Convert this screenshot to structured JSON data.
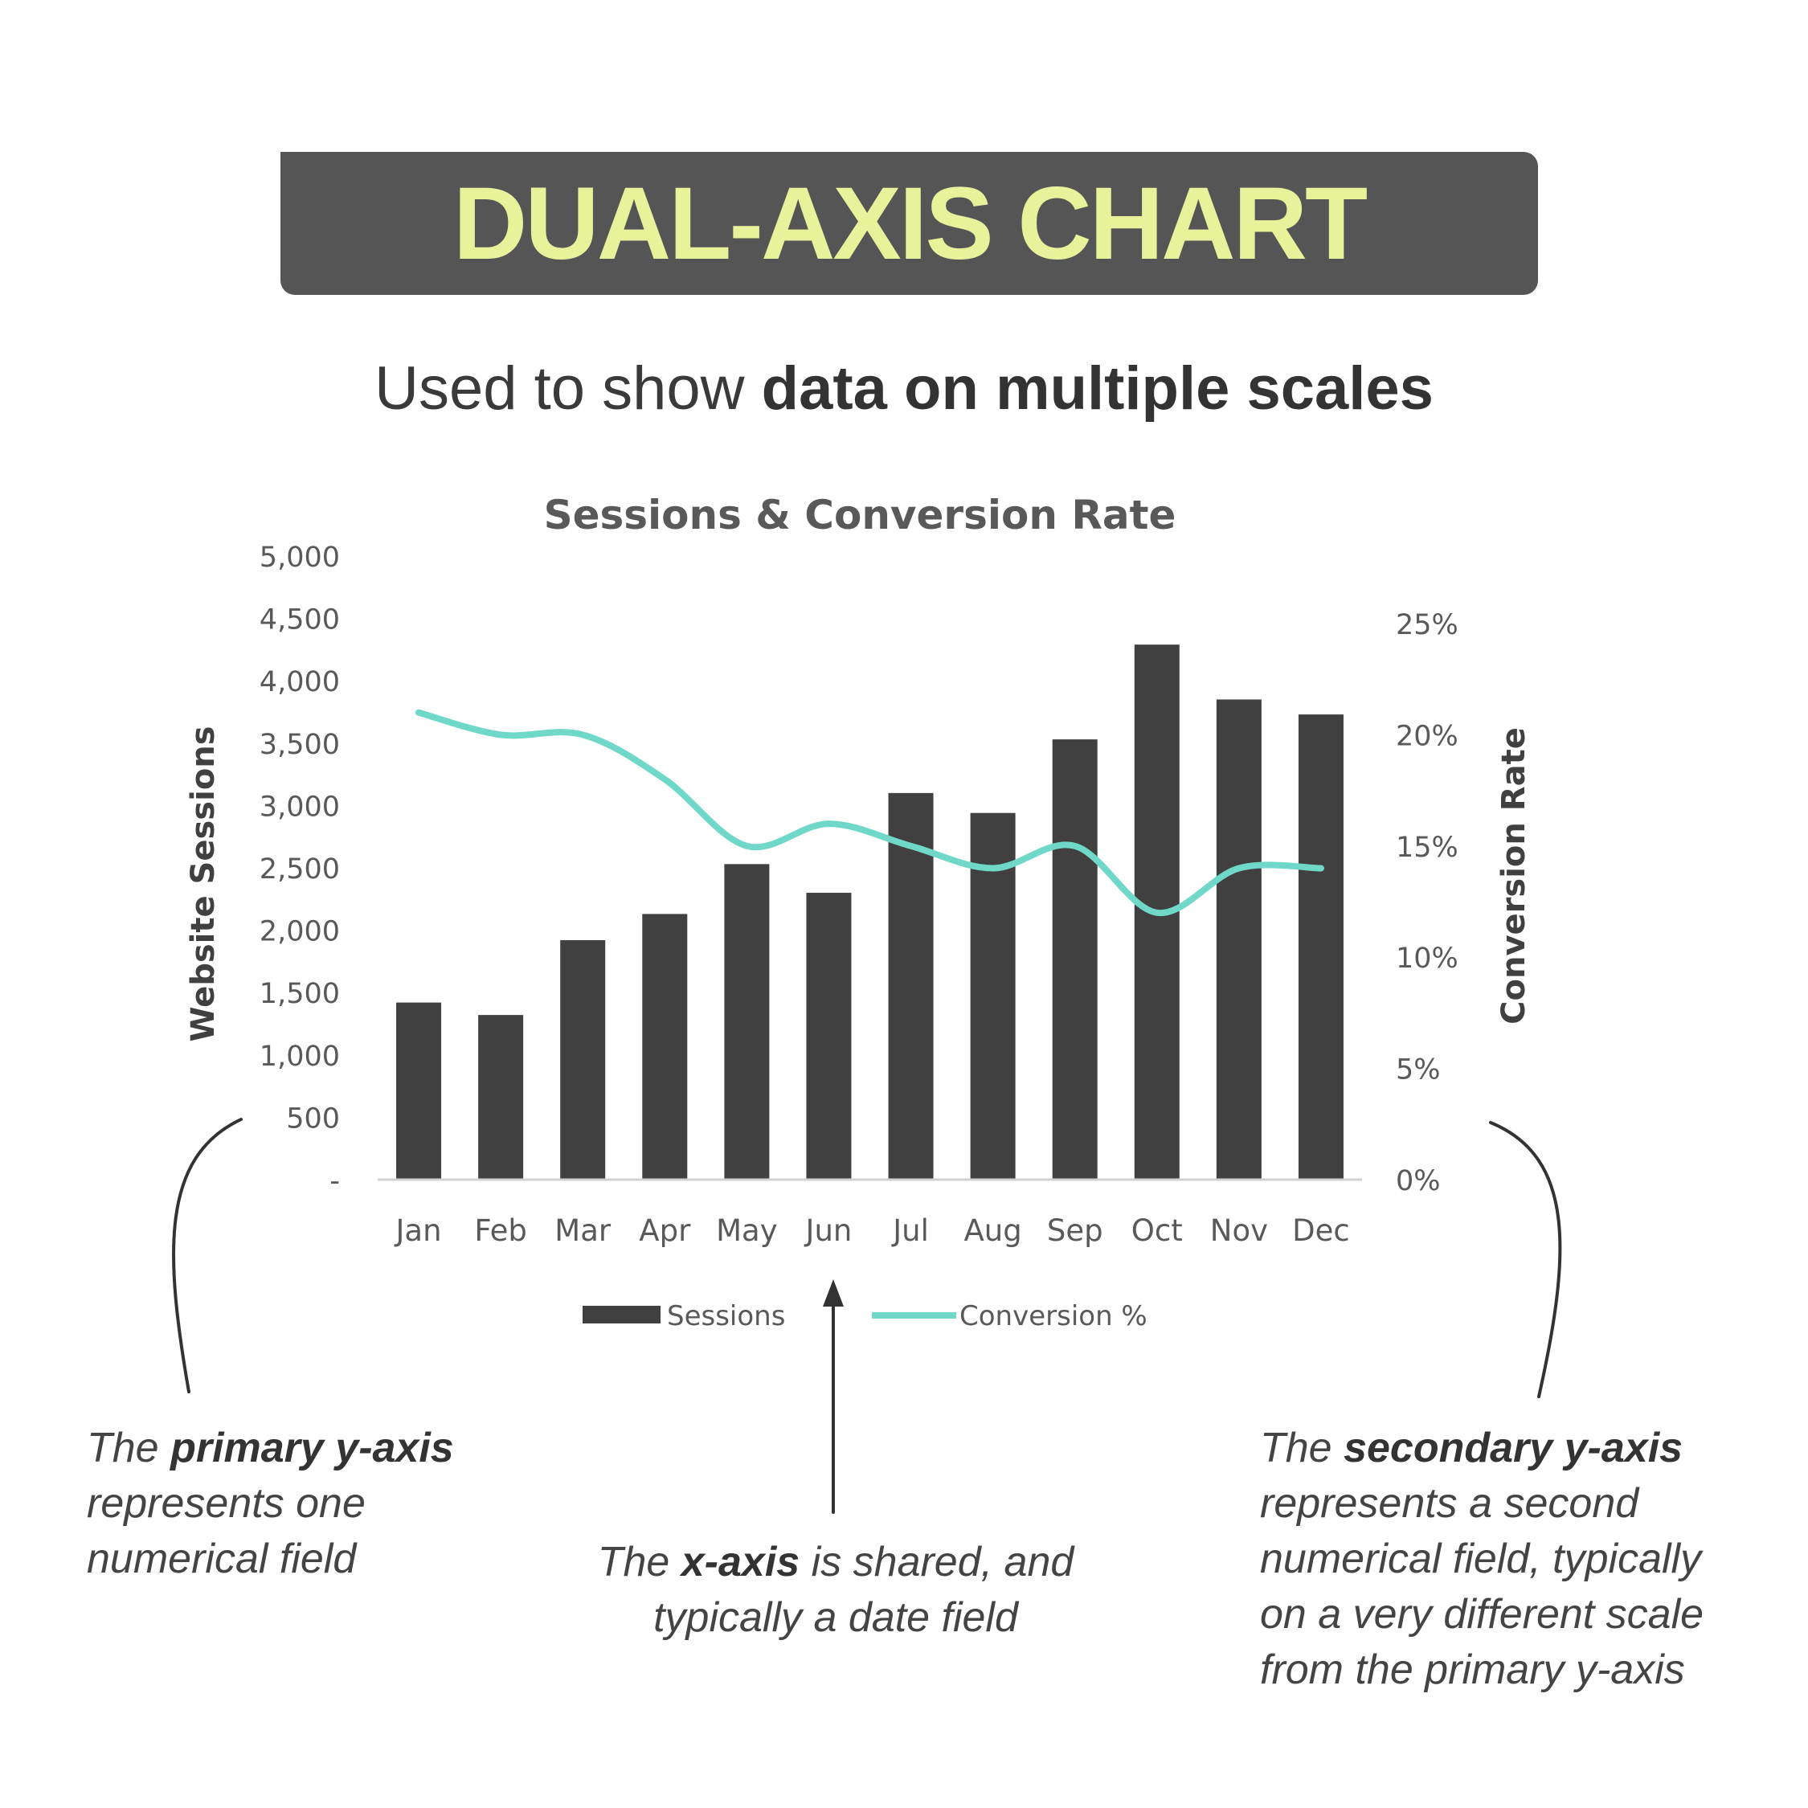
{
  "banner": {
    "title": "DUAL-AXIS CHART"
  },
  "subtitle": {
    "light": "Used to show ",
    "bold": "data on multiple scales"
  },
  "chart_data": {
    "type": "bar",
    "title": "Sessions & Conversion Rate",
    "categories": [
      "Jan",
      "Feb",
      "Mar",
      "Apr",
      "May",
      "Jun",
      "Jul",
      "Aug",
      "Sep",
      "Oct",
      "Nov",
      "Dec"
    ],
    "series": [
      {
        "name": "Sessions",
        "type": "bar",
        "axis": "primary",
        "color": "#404040",
        "values": [
          1420,
          1320,
          1920,
          2130,
          2530,
          2300,
          3100,
          2940,
          3530,
          4290,
          3850,
          3730
        ]
      },
      {
        "name": "Conversion %",
        "type": "line",
        "axis": "secondary",
        "color": "#6fd8c9",
        "values": [
          21,
          20,
          20,
          18,
          15,
          16,
          15,
          14,
          15,
          12,
          14,
          14
        ]
      }
    ],
    "ylabel": "Website Sessions",
    "y2label": "Conversion Rate",
    "ylim": [
      0,
      5000
    ],
    "y2lim": [
      0,
      25
    ],
    "yticks": [
      "-",
      "500",
      "1,000",
      "1,500",
      "2,000",
      "2,500",
      "3,000",
      "3,500",
      "4,000",
      "4,500",
      "5,000"
    ],
    "ytick_values": [
      0,
      500,
      1000,
      1500,
      2000,
      2500,
      3000,
      3500,
      4000,
      4500,
      5000
    ],
    "y2ticks": [
      "0%",
      "5%",
      "10%",
      "15%",
      "20%",
      "25%"
    ],
    "y2tick_values": [
      0,
      5,
      10,
      15,
      20,
      25
    ],
    "legend": {
      "position": "bottom"
    },
    "grid": false
  },
  "notes": {
    "left": {
      "prefix": "The ",
      "bold": "primary y-axis",
      "line2": "represents one",
      "line3": "numerical field"
    },
    "middle": {
      "prefix": "The ",
      "bold": "x-axis",
      "suffix": " is shared, and",
      "line2": "typically a date field"
    },
    "right": {
      "prefix": "The ",
      "bold": "secondary y-axis",
      "line2": "represents a second",
      "line3": "numerical field, typically",
      "line4": "on a very different scale",
      "line5": "from the primary y-axis"
    }
  },
  "colors": {
    "banner_bg": "#555555",
    "banner_text": "#e7f29a",
    "bars": "#404040",
    "line": "#6fd8c9"
  }
}
